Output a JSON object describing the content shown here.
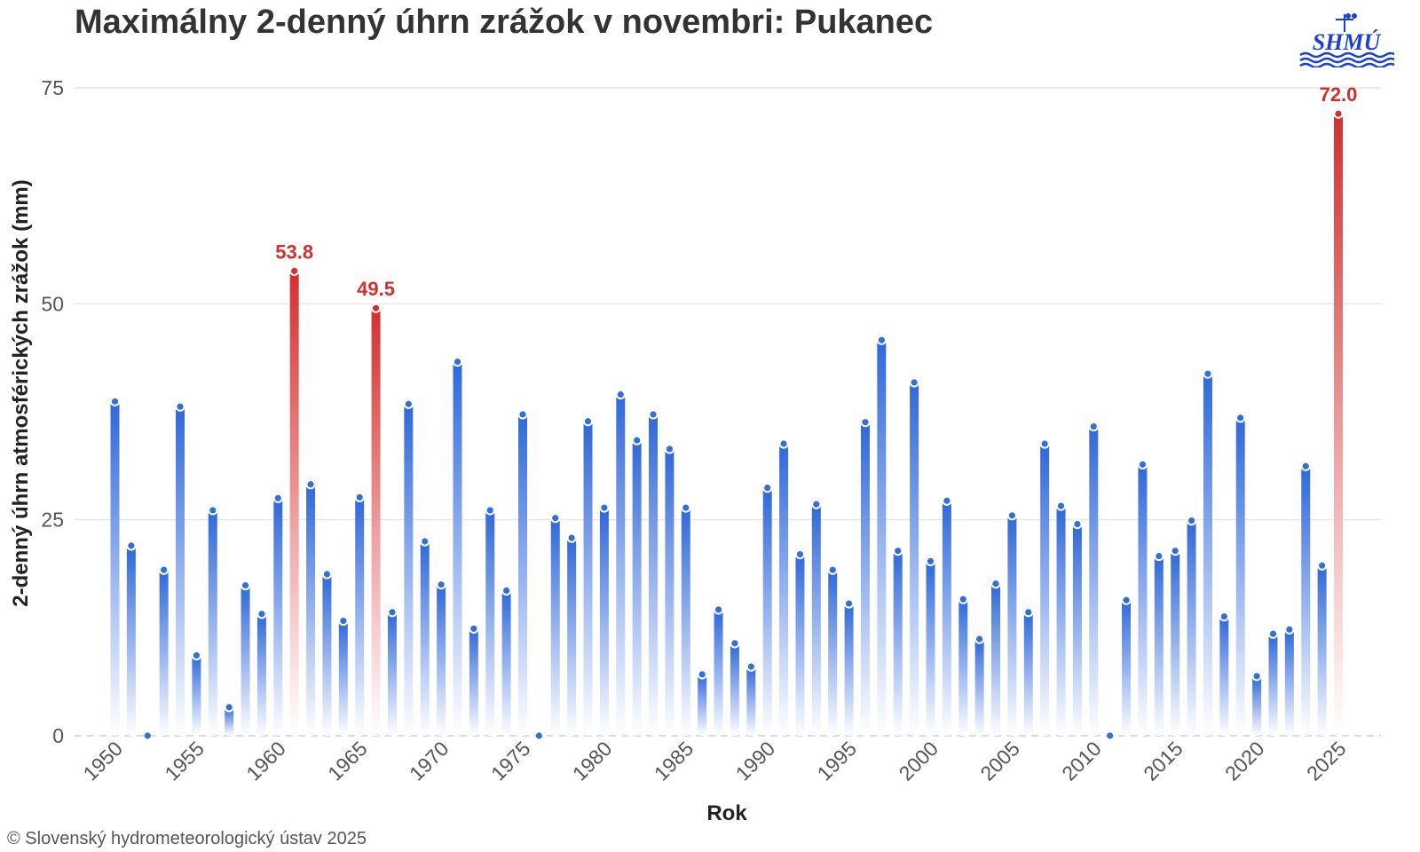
{
  "chart_data": {
    "type": "bar",
    "title": "Maximálny 2-denný úhrn zrážok v novembri: Pukanec",
    "xlabel": "Rok",
    "ylabel": "2-denný úhrn atmosférických zrážok (mm)",
    "ylim": [
      0,
      75
    ],
    "yticks": [
      0,
      25,
      50,
      75
    ],
    "xticks": [
      1950,
      1955,
      1960,
      1965,
      1970,
      1975,
      1980,
      1985,
      1990,
      1995,
      2000,
      2005,
      2010,
      2015,
      2020,
      2025
    ],
    "grid": "horizontal",
    "x": [
      1950,
      1951,
      1952,
      1953,
      1954,
      1955,
      1956,
      1957,
      1958,
      1959,
      1960,
      1961,
      1962,
      1963,
      1964,
      1965,
      1966,
      1967,
      1968,
      1969,
      1970,
      1971,
      1972,
      1973,
      1974,
      1975,
      1976,
      1977,
      1978,
      1979,
      1980,
      1981,
      1982,
      1983,
      1984,
      1985,
      1986,
      1987,
      1988,
      1989,
      1990,
      1991,
      1992,
      1993,
      1994,
      1995,
      1996,
      1997,
      1998,
      1999,
      2000,
      2001,
      2002,
      2003,
      2004,
      2005,
      2006,
      2007,
      2008,
      2009,
      2010,
      2011,
      2012,
      2013,
      2014,
      2015,
      2016,
      2017,
      2018,
      2019,
      2020,
      2021,
      2022,
      2023,
      2024,
      2025
    ],
    "values": [
      38.7,
      22.0,
      0.0,
      19.2,
      38.1,
      9.3,
      26.1,
      3.3,
      17.4,
      14.1,
      27.5,
      53.8,
      29.1,
      18.7,
      13.3,
      27.6,
      49.5,
      14.3,
      38.4,
      22.5,
      17.5,
      43.3,
      12.4,
      26.1,
      16.8,
      37.2,
      0.0,
      25.2,
      22.9,
      36.4,
      26.4,
      39.5,
      34.2,
      37.2,
      33.2,
      26.4,
      7.1,
      14.6,
      10.7,
      8.0,
      28.7,
      33.8,
      21.0,
      26.8,
      19.2,
      15.3,
      36.3,
      45.8,
      21.4,
      40.9,
      20.2,
      27.2,
      15.8,
      11.2,
      17.6,
      25.5,
      14.3,
      33.8,
      26.6,
      24.5,
      35.8,
      0.0,
      15.7,
      31.4,
      20.8,
      21.4,
      24.9,
      41.9,
      13.8,
      36.8,
      6.9,
      11.8,
      12.3,
      31.2,
      19.7,
      72.0
    ],
    "highlighted": [
      {
        "x": 1961,
        "label": "53.8"
      },
      {
        "x": 1966,
        "label": "49.5"
      },
      {
        "x": 2025,
        "label": "72.0"
      }
    ],
    "colors": {
      "normal": "#3370d6",
      "highlight": "#d32f2f"
    }
  },
  "footer": {
    "copyright": "© Slovenský hydrometeorologický ústav 2025"
  },
  "logo": {
    "text": "SHMÚ"
  }
}
